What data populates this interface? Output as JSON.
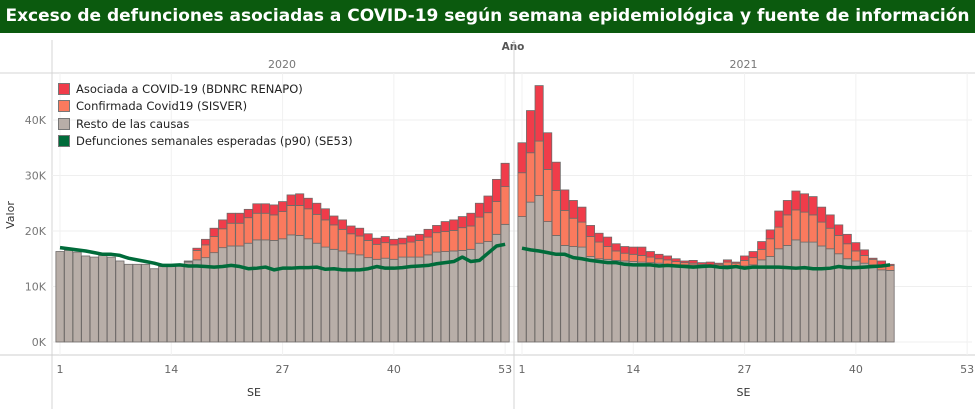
{
  "title": "Exceso de defunciones asociadas a COVID-19 según semana epidemiológica y fuente de información",
  "chart_data": {
    "type": "bar",
    "stacked": true,
    "title": "Exceso de defunciones asociadas a COVID-19 según semana epidemiológica y fuente de información",
    "column_header": "Año",
    "xlabel": "SE",
    "ylabel": "Valor",
    "units": "thousands",
    "ylim": [
      0,
      48
    ],
    "yticks": [
      "0K",
      "10K",
      "20K",
      "30K",
      "40K"
    ],
    "ytick_values": [
      0,
      10,
      20,
      30,
      40
    ],
    "xticks": [
      "1",
      "14",
      "27",
      "40",
      "53"
    ],
    "xtick_values": [
      1,
      14,
      27,
      40,
      53
    ],
    "grid": true,
    "legend_position": "top-left",
    "colors": {
      "asociada": "#f03c4a",
      "confirmada": "#fa7a5e",
      "resto": "#b8aea8",
      "esperadas": "#006b3a"
    },
    "legend": [
      {
        "key": "asociada",
        "label": "Asociada a COVID-19 (BDNRC RENAPO)"
      },
      {
        "key": "confirmada",
        "label": "Confirmada Covid19 (SISVER)"
      },
      {
        "key": "resto",
        "label": "Resto de las causas"
      },
      {
        "key": "esperadas",
        "label": "Defunciones semanales esperadas (p90) (SE53)"
      }
    ],
    "panels": [
      {
        "year": "2020",
        "resto": [
          16.3,
          16.5,
          16.2,
          15.5,
          15.3,
          15.6,
          15.3,
          14.6,
          14.0,
          14.0,
          14.0,
          13.2,
          13.6,
          13.6,
          13.7,
          14.4,
          14.8,
          15.2,
          16.1,
          17.0,
          17.3,
          17.3,
          17.8,
          18.4,
          18.4,
          18.3,
          18.6,
          19.3,
          19.2,
          18.6,
          17.8,
          17.1,
          16.7,
          16.4,
          15.9,
          15.7,
          15.2,
          14.9,
          15.1,
          14.9,
          15.3,
          15.3,
          15.3,
          15.7,
          16.2,
          16.3,
          16.4,
          16.5,
          16.7,
          17.8,
          18.1,
          19.4,
          21.2
        ],
        "confirmada": [
          0,
          0,
          0,
          0,
          0,
          0,
          0,
          0,
          0,
          0,
          0,
          0,
          0.1,
          0.1,
          0.1,
          0.1,
          1.7,
          2.3,
          2.9,
          3.4,
          4.1,
          4.1,
          4.6,
          4.8,
          4.8,
          4.6,
          4.9,
          5.3,
          5.4,
          5.4,
          5.2,
          4.9,
          4.4,
          3.9,
          3.6,
          3.4,
          3.1,
          2.7,
          2.8,
          2.6,
          2.4,
          2.7,
          3.0,
          3.2,
          3.5,
          3.6,
          3.7,
          4.1,
          4.2,
          4.7,
          5.2,
          5.9,
          6.8
        ],
        "asociada": [
          0,
          0,
          0,
          0,
          0,
          0,
          0,
          0,
          0,
          0,
          0,
          0,
          0.1,
          0.1,
          0.1,
          0.1,
          0.4,
          1.0,
          1.5,
          1.6,
          1.8,
          1.8,
          1.5,
          1.7,
          1.7,
          1.8,
          1.8,
          1.9,
          2.1,
          1.9,
          2.0,
          2.0,
          1.6,
          1.7,
          1.4,
          1.4,
          1.2,
          1.1,
          1.1,
          1.0,
          1.0,
          1.1,
          1.1,
          1.4,
          1.3,
          1.8,
          1.9,
          2.0,
          2.3,
          2.5,
          3.0,
          4.0,
          4.2
        ],
        "esperadas": [
          17.0,
          16.8,
          16.6,
          16.4,
          16.1,
          15.8,
          15.8,
          15.6,
          15.1,
          14.8,
          14.5,
          14.2,
          13.8,
          13.8,
          13.9,
          13.7,
          13.7,
          13.6,
          13.5,
          13.6,
          13.8,
          13.6,
          13.2,
          13.3,
          13.5,
          13.0,
          13.3,
          13.3,
          13.4,
          13.4,
          13.5,
          13.1,
          13.2,
          13.0,
          13.0,
          13.0,
          13.2,
          13.6,
          13.3,
          13.3,
          13.4,
          13.6,
          13.7,
          13.8,
          14.1,
          14.3,
          14.5,
          15.3,
          14.5,
          14.7,
          16.0,
          17.3,
          17.6
        ]
      },
      {
        "year": "2021",
        "resto": [
          22.6,
          25.2,
          26.4,
          21.7,
          19.2,
          17.4,
          17.2,
          17.1,
          15.4,
          15.0,
          14.9,
          14.7,
          14.6,
          14.5,
          14.4,
          14.3,
          14.2,
          14.0,
          13.9,
          13.9,
          13.9,
          13.5,
          13.5,
          13.6,
          13.8,
          13.7,
          13.7,
          13.9,
          14.8,
          15.4,
          16.8,
          17.4,
          18.4,
          18.0,
          18.0,
          17.3,
          16.8,
          15.9,
          15.0,
          14.6,
          14.2,
          13.9,
          13.0,
          12.9
        ],
        "confirmada": [
          7.9,
          8.9,
          9.8,
          9.4,
          8.1,
          6.3,
          5.1,
          4.5,
          3.6,
          3.0,
          2.3,
          1.7,
          1.4,
          1.3,
          1.2,
          1.0,
          0.8,
          0.8,
          0.6,
          0.4,
          0.3,
          0.5,
          0.4,
          0.4,
          0.6,
          0.5,
          1.0,
          1.3,
          1.9,
          3.2,
          3.9,
          5.5,
          5.4,
          5.4,
          4.9,
          4.3,
          3.7,
          3.3,
          2.7,
          1.8,
          1.4,
          1.0,
          0.9,
          0.9
        ],
        "asociada": [
          5.4,
          7.6,
          10.0,
          6.6,
          5.1,
          3.7,
          3.2,
          2.7,
          2.0,
          1.6,
          1.7,
          1.3,
          1.2,
          1.3,
          1.5,
          1.0,
          0.8,
          0.7,
          0.5,
          0.3,
          0.5,
          0.3,
          0.5,
          0.2,
          0.4,
          0.2,
          0.8,
          1.1,
          1.4,
          1.6,
          2.9,
          2.6,
          3.4,
          3.3,
          3.3,
          2.7,
          2.4,
          1.9,
          1.7,
          1.5,
          1.0,
          0.2,
          0.7,
          0.2
        ],
        "esperadas": [
          16.9,
          16.6,
          16.4,
          16.1,
          15.8,
          15.8,
          15.2,
          15.0,
          14.7,
          14.5,
          14.3,
          14.3,
          14.0,
          13.9,
          13.9,
          13.9,
          13.7,
          13.8,
          13.7,
          13.6,
          13.5,
          13.6,
          13.7,
          13.5,
          13.4,
          13.6,
          13.3,
          13.5,
          13.5,
          13.5,
          13.5,
          13.4,
          13.3,
          13.4,
          13.2,
          13.2,
          13.3,
          13.6,
          13.4,
          13.4,
          13.5,
          13.6,
          13.7,
          13.9
        ]
      }
    ]
  }
}
